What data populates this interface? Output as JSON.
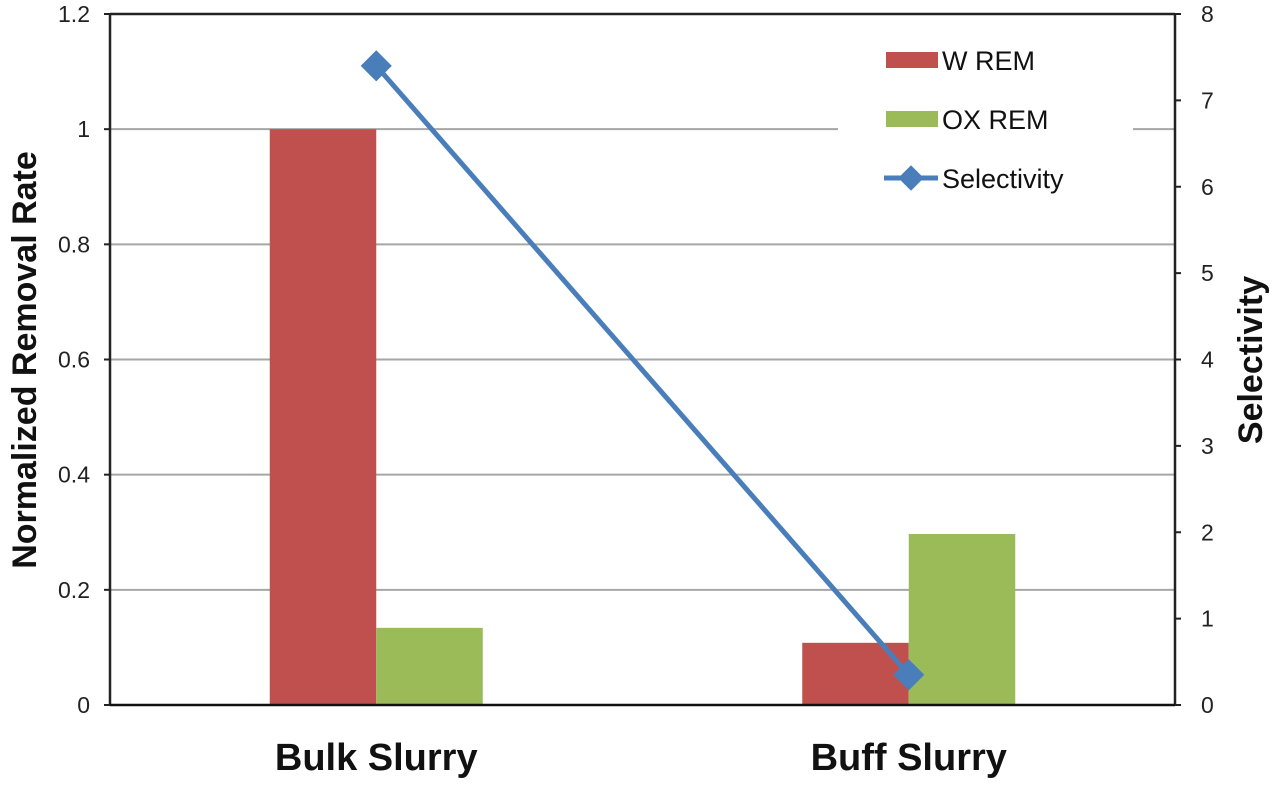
{
  "chart_data": {
    "type": "bar",
    "title": "",
    "categories": [
      "Bulk Slurry",
      "Buff Slurry"
    ],
    "series": [
      {
        "name": "W REM",
        "type": "bar",
        "axis": "left",
        "color": "#c0504d",
        "values": [
          1.0,
          0.108
        ]
      },
      {
        "name": "OX REM",
        "type": "bar",
        "axis": "left",
        "color": "#9bbb59",
        "values": [
          0.134,
          0.297
        ]
      },
      {
        "name": "Selectivity",
        "type": "line",
        "marker": "diamond",
        "axis": "right",
        "color": "#4a7ebb",
        "values": [
          7.4,
          0.35
        ]
      }
    ],
    "xlabel": "",
    "ylabel": "Normalized Removal Rate",
    "ylabel_right": "Selectivity",
    "ylim": [
      0,
      1.2
    ],
    "ylim_right": [
      0,
      8
    ],
    "yticks": [
      "0",
      "0.2",
      "0.4",
      "0.6",
      "0.8",
      "1",
      "1.2"
    ],
    "yticks_right": [
      "0",
      "1",
      "2",
      "3",
      "4",
      "5",
      "6",
      "7",
      "8"
    ],
    "grid": true,
    "legend_position": "upper right inside"
  },
  "labels": {
    "ylabel": "Normalized Removal Rate",
    "ylabel_right": "Selectivity",
    "legend": [
      "W REM",
      "OX REM",
      "Selectivity"
    ]
  }
}
